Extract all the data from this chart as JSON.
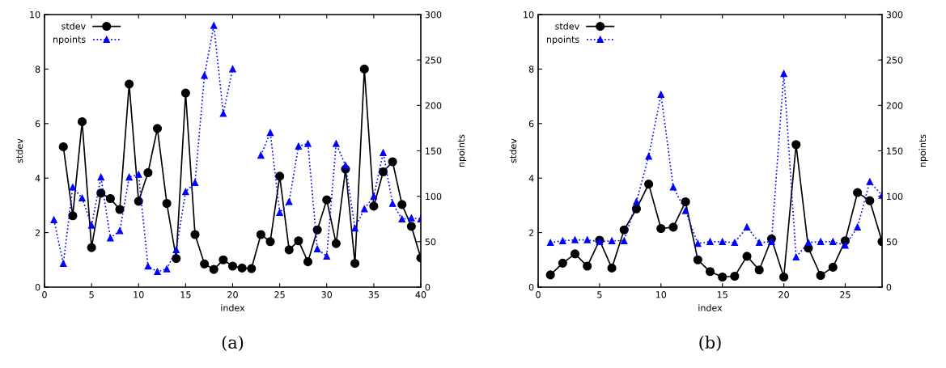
{
  "chart_data": [
    {
      "type": "line",
      "xlabel": "index",
      "ylabel": "stdev",
      "y2label": "npoints",
      "annotations": [
        "(a)"
      ],
      "x": [
        1,
        2,
        3,
        4,
        5,
        6,
        7,
        8,
        9,
        10,
        11,
        12,
        13,
        14,
        15,
        16,
        17,
        18,
        19,
        20,
        21,
        22,
        23,
        24,
        25,
        26,
        27,
        28,
        29,
        30,
        31,
        32,
        33,
        34,
        35,
        36,
        37,
        38,
        39,
        40
      ],
      "xlim": [
        0,
        40
      ],
      "xticks": [
        0,
        5,
        10,
        15,
        20,
        25,
        30,
        35,
        40
      ],
      "ylim": [
        0,
        10
      ],
      "yticks": [
        0,
        2,
        4,
        6,
        8,
        10
      ],
      "y2lim": [
        0,
        300
      ],
      "y2ticks": [
        0,
        50,
        100,
        150,
        200,
        250,
        300
      ],
      "legend": "top left",
      "grid": false,
      "series": [
        {
          "name": "stdev",
          "color": "#000000",
          "marker": "circle",
          "line_style": "solid",
          "values": [
            null,
            5.15,
            2.62,
            6.07,
            1.45,
            3.45,
            3.25,
            2.85,
            7.45,
            3.15,
            4.2,
            5.82,
            3.07,
            1.05,
            7.12,
            1.93,
            0.85,
            0.65,
            1.0,
            0.77,
            0.7,
            0.68,
            1.93,
            1.67,
            4.07,
            1.37,
            1.7,
            0.93,
            2.1,
            3.2,
            1.6,
            4.33,
            0.87,
            8.0,
            2.97,
            4.23,
            4.6,
            3.03,
            2.23,
            1.07
          ]
        },
        {
          "name": "npoints",
          "color": "#0000ff",
          "marker": "triangle",
          "line_style": "dotted",
          "axis": "y2",
          "values": [
            74,
            26,
            110,
            98,
            68,
            121,
            54,
            62,
            121,
            124,
            23,
            17,
            20,
            41,
            105,
            115,
            233,
            288,
            191,
            240,
            null,
            null,
            145,
            170,
            82,
            94,
            155,
            158,
            42,
            34,
            158,
            134,
            65,
            86,
            100,
            148,
            92,
            75,
            76,
            75
          ]
        }
      ]
    },
    {
      "type": "line",
      "xlabel": "index",
      "ylabel": "stdev",
      "y2label": "npoints",
      "annotations": [
        "(b)"
      ],
      "x": [
        1,
        2,
        3,
        4,
        5,
        6,
        7,
        8,
        9,
        10,
        11,
        12,
        13,
        14,
        15,
        16,
        17,
        18,
        19,
        20,
        21,
        22,
        23,
        24,
        25,
        26,
        27,
        28
      ],
      "xlim": [
        0,
        28
      ],
      "xticks": [
        0,
        5,
        10,
        15,
        20,
        25
      ],
      "ylim": [
        0,
        10
      ],
      "yticks": [
        0,
        2,
        4,
        6,
        8,
        10
      ],
      "y2lim": [
        0,
        300
      ],
      "y2ticks": [
        0,
        50,
        100,
        150,
        200,
        250,
        300
      ],
      "legend": "top left",
      "grid": false,
      "series": [
        {
          "name": "stdev",
          "color": "#000000",
          "marker": "circle",
          "line_style": "solid",
          "values": [
            0.45,
            0.88,
            1.22,
            0.77,
            1.72,
            0.7,
            2.1,
            2.87,
            3.78,
            2.15,
            2.2,
            3.13,
            1.0,
            0.57,
            0.37,
            0.4,
            1.13,
            0.63,
            1.77,
            0.37,
            5.23,
            1.43,
            0.43,
            0.73,
            1.7,
            3.47,
            3.17,
            1.67
          ]
        },
        {
          "name": "npoints",
          "color": "#0000ff",
          "marker": "triangle",
          "line_style": "dotted",
          "axis": "y2",
          "values": [
            49,
            51,
            52,
            52,
            50,
            51,
            51,
            94,
            144,
            212,
            110,
            84,
            48,
            50,
            50,
            49,
            66,
            49,
            50,
            235,
            33,
            49,
            50,
            50,
            46,
            66,
            116,
            101
          ]
        }
      ]
    }
  ]
}
